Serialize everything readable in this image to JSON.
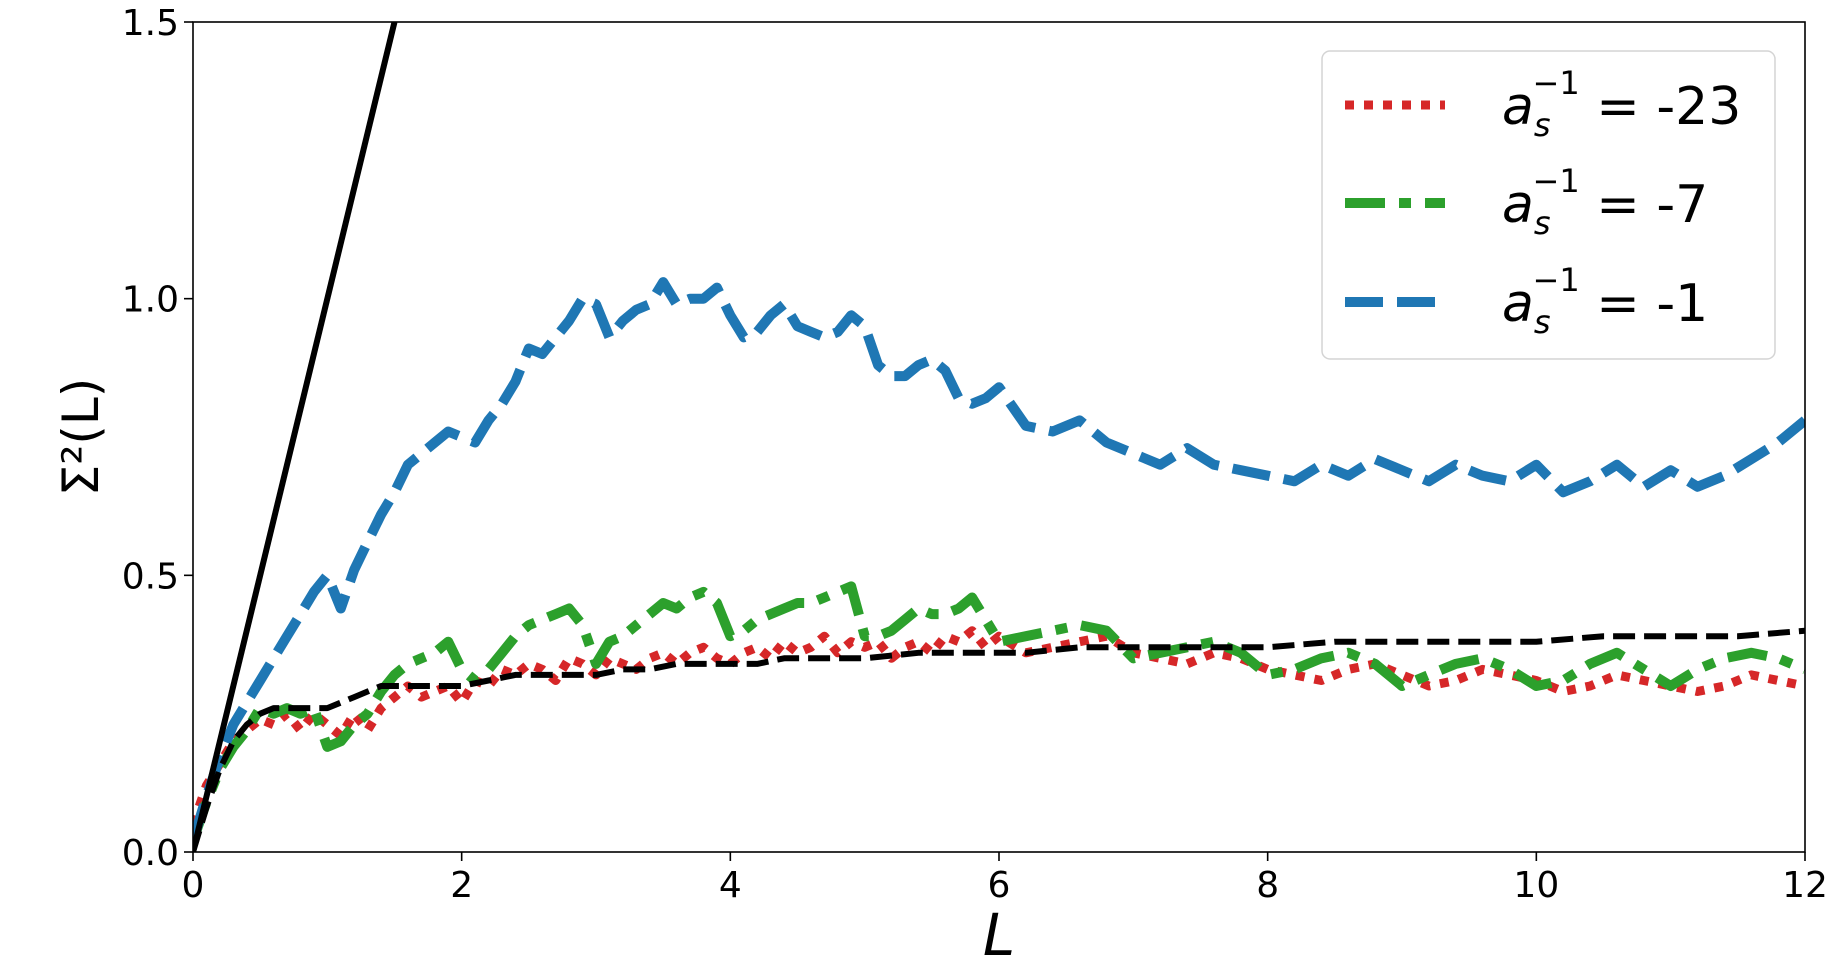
{
  "chart_data": {
    "type": "line",
    "xlabel": "L",
    "ylabel": "Σ²(L)",
    "xlim": [
      0,
      12
    ],
    "ylim": [
      0,
      1.5
    ],
    "x_ticks": [
      0,
      2,
      4,
      6,
      8,
      10,
      12
    ],
    "x_tick_labels": [
      "0",
      "2",
      "4",
      "6",
      "8",
      "10",
      "12"
    ],
    "y_ticks": [
      0.0,
      0.5,
      1.0,
      1.5
    ],
    "y_tick_labels": [
      "0.0",
      "0.5",
      "1.0",
      "1.5"
    ],
    "grid": false,
    "legend_position": "top-right",
    "series": [
      {
        "key": "red",
        "legend_base": "a",
        "legend_sub": "s",
        "legend_sup": "−1",
        "legend_value": " = -23",
        "color": "#d62728",
        "style": "dotted",
        "x": [
          0,
          0.1,
          0.2,
          0.3,
          0.4,
          0.5,
          0.6,
          0.7,
          0.8,
          0.9,
          1.0,
          1.1,
          1.2,
          1.3,
          1.4,
          1.5,
          1.6,
          1.7,
          1.8,
          1.9,
          2.0,
          2.1,
          2.2,
          2.3,
          2.4,
          2.5,
          2.6,
          2.7,
          2.8,
          2.9,
          3.0,
          3.1,
          3.2,
          3.3,
          3.4,
          3.5,
          3.6,
          3.7,
          3.8,
          3.9,
          4.0,
          4.1,
          4.2,
          4.3,
          4.4,
          4.5,
          4.6,
          4.7,
          4.8,
          4.9,
          5.0,
          5.1,
          5.2,
          5.3,
          5.4,
          5.5,
          5.6,
          5.7,
          5.8,
          5.9,
          6.0,
          6.2,
          6.4,
          6.6,
          6.8,
          7.0,
          7.2,
          7.4,
          7.6,
          7.8,
          8.0,
          8.2,
          8.4,
          8.6,
          8.8,
          9.0,
          9.2,
          9.4,
          9.6,
          9.8,
          10.0,
          10.2,
          10.4,
          10.6,
          10.8,
          11.0,
          11.2,
          11.4,
          11.6,
          11.8,
          12.0
        ],
        "y": [
          0.05,
          0.12,
          0.16,
          0.2,
          0.22,
          0.24,
          0.23,
          0.25,
          0.22,
          0.25,
          0.23,
          0.21,
          0.25,
          0.22,
          0.26,
          0.28,
          0.3,
          0.28,
          0.29,
          0.3,
          0.27,
          0.31,
          0.3,
          0.33,
          0.32,
          0.34,
          0.33,
          0.31,
          0.35,
          0.34,
          0.32,
          0.35,
          0.34,
          0.33,
          0.35,
          0.36,
          0.34,
          0.36,
          0.37,
          0.35,
          0.34,
          0.36,
          0.37,
          0.35,
          0.38,
          0.36,
          0.37,
          0.39,
          0.36,
          0.38,
          0.37,
          0.38,
          0.35,
          0.37,
          0.38,
          0.36,
          0.39,
          0.38,
          0.4,
          0.37,
          0.39,
          0.36,
          0.37,
          0.38,
          0.39,
          0.36,
          0.35,
          0.34,
          0.36,
          0.35,
          0.33,
          0.32,
          0.31,
          0.33,
          0.34,
          0.32,
          0.3,
          0.31,
          0.33,
          0.32,
          0.31,
          0.29,
          0.3,
          0.32,
          0.31,
          0.3,
          0.29,
          0.3,
          0.32,
          0.31,
          0.3
        ]
      },
      {
        "key": "green",
        "legend_base": "a",
        "legend_sub": "s",
        "legend_sup": "−1",
        "legend_value": " = -7",
        "color": "#2ca02c",
        "style": "dashdot",
        "x": [
          0,
          0.1,
          0.2,
          0.3,
          0.4,
          0.5,
          0.6,
          0.7,
          0.8,
          0.9,
          1.0,
          1.1,
          1.2,
          1.3,
          1.4,
          1.5,
          1.6,
          1.7,
          1.8,
          1.9,
          2.0,
          2.1,
          2.2,
          2.3,
          2.4,
          2.5,
          2.6,
          2.7,
          2.8,
          2.9,
          3.0,
          3.1,
          3.2,
          3.3,
          3.4,
          3.5,
          3.6,
          3.7,
          3.8,
          3.9,
          4.0,
          4.1,
          4.2,
          4.3,
          4.4,
          4.5,
          4.6,
          4.7,
          4.8,
          4.9,
          5.0,
          5.1,
          5.2,
          5.3,
          5.4,
          5.5,
          5.6,
          5.7,
          5.8,
          5.9,
          6.0,
          6.2,
          6.4,
          6.6,
          6.8,
          7.0,
          7.2,
          7.4,
          7.6,
          7.8,
          8.0,
          8.2,
          8.4,
          8.6,
          8.8,
          9.0,
          9.2,
          9.4,
          9.6,
          9.8,
          10.0,
          10.2,
          10.4,
          10.6,
          10.8,
          11.0,
          11.2,
          11.4,
          11.6,
          11.8,
          12.0
        ],
        "y": [
          0.02,
          0.09,
          0.15,
          0.19,
          0.22,
          0.26,
          0.25,
          0.26,
          0.25,
          0.26,
          0.19,
          0.2,
          0.23,
          0.25,
          0.29,
          0.32,
          0.34,
          0.35,
          0.36,
          0.38,
          0.33,
          0.31,
          0.33,
          0.36,
          0.39,
          0.41,
          0.42,
          0.43,
          0.44,
          0.41,
          0.34,
          0.38,
          0.39,
          0.41,
          0.43,
          0.45,
          0.44,
          0.46,
          0.47,
          0.45,
          0.39,
          0.4,
          0.42,
          0.43,
          0.44,
          0.45,
          0.45,
          0.46,
          0.47,
          0.48,
          0.39,
          0.39,
          0.4,
          0.42,
          0.44,
          0.43,
          0.43,
          0.44,
          0.46,
          0.42,
          0.38,
          0.39,
          0.4,
          0.41,
          0.4,
          0.35,
          0.36,
          0.37,
          0.38,
          0.36,
          0.32,
          0.33,
          0.35,
          0.36,
          0.34,
          0.3,
          0.32,
          0.34,
          0.35,
          0.33,
          0.3,
          0.31,
          0.34,
          0.36,
          0.33,
          0.3,
          0.33,
          0.35,
          0.36,
          0.35,
          0.33
        ]
      },
      {
        "key": "blue",
        "legend_base": "a",
        "legend_sub": "s",
        "legend_sup": "−1",
        "legend_value": " = -1",
        "color": "#1f77b4",
        "style": "dashed",
        "x": [
          0,
          0.1,
          0.2,
          0.3,
          0.4,
          0.5,
          0.6,
          0.7,
          0.8,
          0.9,
          1.0,
          1.1,
          1.2,
          1.3,
          1.4,
          1.5,
          1.6,
          1.7,
          1.8,
          1.9,
          2.0,
          2.1,
          2.2,
          2.3,
          2.4,
          2.5,
          2.6,
          2.7,
          2.8,
          2.9,
          3.0,
          3.1,
          3.2,
          3.3,
          3.4,
          3.5,
          3.6,
          3.7,
          3.8,
          3.9,
          4.0,
          4.1,
          4.2,
          4.3,
          4.4,
          4.5,
          4.6,
          4.7,
          4.8,
          4.9,
          5.0,
          5.1,
          5.2,
          5.3,
          5.4,
          5.5,
          5.6,
          5.7,
          5.8,
          5.9,
          6.0,
          6.2,
          6.4,
          6.6,
          6.8,
          7.0,
          7.2,
          7.4,
          7.6,
          7.8,
          8.0,
          8.2,
          8.4,
          8.6,
          8.8,
          9.0,
          9.2,
          9.4,
          9.6,
          9.8,
          10.0,
          10.2,
          10.4,
          10.6,
          10.8,
          11.0,
          11.2,
          11.4,
          11.6,
          11.8,
          12.0
        ],
        "y": [
          0.02,
          0.1,
          0.17,
          0.23,
          0.27,
          0.31,
          0.35,
          0.39,
          0.43,
          0.47,
          0.5,
          0.44,
          0.51,
          0.56,
          0.61,
          0.65,
          0.7,
          0.72,
          0.74,
          0.76,
          0.75,
          0.74,
          0.78,
          0.81,
          0.85,
          0.91,
          0.9,
          0.93,
          0.96,
          1.0,
          0.99,
          0.93,
          0.96,
          0.98,
          0.99,
          1.03,
          0.99,
          1.0,
          1.0,
          1.02,
          0.97,
          0.93,
          0.94,
          0.97,
          0.99,
          0.95,
          0.94,
          0.93,
          0.94,
          0.97,
          0.95,
          0.88,
          0.86,
          0.86,
          0.88,
          0.89,
          0.87,
          0.82,
          0.81,
          0.82,
          0.84,
          0.77,
          0.76,
          0.78,
          0.74,
          0.72,
          0.7,
          0.73,
          0.7,
          0.69,
          0.68,
          0.67,
          0.7,
          0.68,
          0.71,
          0.69,
          0.67,
          0.7,
          0.68,
          0.67,
          0.7,
          0.65,
          0.67,
          0.7,
          0.66,
          0.69,
          0.66,
          0.68,
          0.71,
          0.74,
          0.78
        ]
      },
      {
        "key": "black-dashed",
        "color": "#000000",
        "style": "dashed-thin",
        "x": [
          0,
          0.1,
          0.2,
          0.3,
          0.4,
          0.5,
          0.6,
          0.7,
          0.8,
          0.9,
          1.0,
          1.1,
          1.2,
          1.3,
          1.4,
          1.5,
          1.6,
          1.7,
          1.8,
          1.9,
          2.0,
          2.2,
          2.4,
          2.6,
          2.8,
          3.0,
          3.2,
          3.4,
          3.6,
          3.8,
          4.0,
          4.2,
          4.4,
          4.6,
          4.8,
          5.0,
          5.4,
          5.8,
          6.2,
          6.6,
          7.0,
          7.5,
          8.0,
          8.5,
          9.0,
          9.5,
          10.0,
          10.5,
          11.0,
          11.5,
          12.0
        ],
        "y": [
          0.0,
          0.08,
          0.15,
          0.2,
          0.23,
          0.25,
          0.26,
          0.26,
          0.26,
          0.26,
          0.26,
          0.27,
          0.28,
          0.29,
          0.3,
          0.3,
          0.3,
          0.3,
          0.3,
          0.3,
          0.3,
          0.31,
          0.32,
          0.32,
          0.32,
          0.32,
          0.33,
          0.33,
          0.34,
          0.34,
          0.34,
          0.34,
          0.35,
          0.35,
          0.35,
          0.35,
          0.36,
          0.36,
          0.36,
          0.37,
          0.37,
          0.37,
          0.37,
          0.38,
          0.38,
          0.38,
          0.38,
          0.39,
          0.39,
          0.39,
          0.4
        ]
      },
      {
        "key": "black-solid",
        "color": "#000000",
        "style": "solid",
        "x": [
          0,
          1.5
        ],
        "y": [
          0,
          1.5
        ]
      }
    ]
  }
}
